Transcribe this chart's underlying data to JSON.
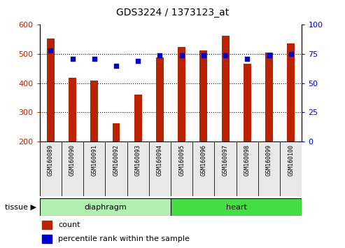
{
  "title": "GDS3224 / 1373123_at",
  "samples": [
    "GSM160089",
    "GSM160090",
    "GSM160091",
    "GSM160092",
    "GSM160093",
    "GSM160094",
    "GSM160095",
    "GSM160096",
    "GSM160097",
    "GSM160098",
    "GSM160099",
    "GSM160100"
  ],
  "counts": [
    553,
    418,
    408,
    263,
    360,
    487,
    524,
    511,
    563,
    467,
    505,
    537
  ],
  "percentiles": [
    78,
    71,
    71,
    65,
    69,
    74,
    74,
    74,
    74,
    71,
    74,
    75
  ],
  "groups": [
    "diaphragm",
    "diaphragm",
    "diaphragm",
    "diaphragm",
    "diaphragm",
    "diaphragm",
    "heart",
    "heart",
    "heart",
    "heart",
    "heart",
    "heart"
  ],
  "group_colors": {
    "diaphragm": "#b2f0b2",
    "heart": "#44dd44"
  },
  "bar_color": "#bb2200",
  "dot_color": "#0000cc",
  "ylim_left": [
    200,
    600
  ],
  "ylim_right": [
    0,
    100
  ],
  "yticks_left": [
    200,
    300,
    400,
    500,
    600
  ],
  "yticks_right": [
    0,
    25,
    50,
    75,
    100
  ],
  "grid_values": [
    300,
    400,
    500
  ],
  "tissue_label": "tissue ▶",
  "legend_count": "count",
  "legend_percentile": "percentile rank within the sample",
  "bg_color": "#e8e8e8"
}
